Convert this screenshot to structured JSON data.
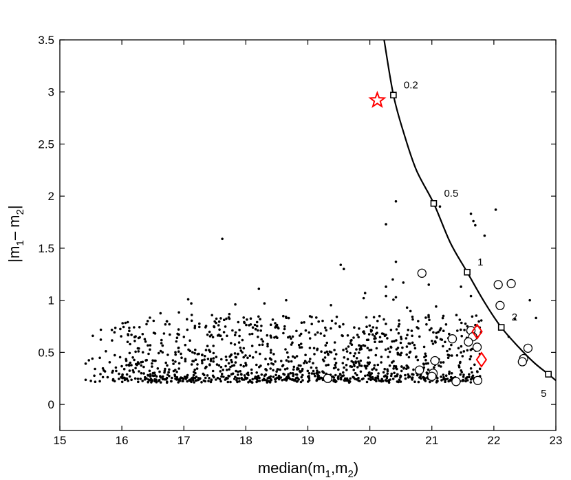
{
  "chart_data": {
    "type": "scatter",
    "title": "",
    "xlabel": {
      "base": "median(m",
      "sub1": "1",
      "mid": ",m",
      "sub2": "2",
      "end": ")"
    },
    "ylabel": {
      "p1": "|m",
      "sub1": "1",
      "p2": "– m",
      "sub2": "2",
      "p3": "|"
    },
    "xlim": [
      15,
      23
    ],
    "ylim": [
      -0.25,
      3.5
    ],
    "xticks": [
      15,
      16,
      17,
      18,
      19,
      20,
      21,
      22,
      23
    ],
    "xtick_labels": [
      "15",
      "16",
      "17",
      "18",
      "19",
      "20",
      "21",
      "22",
      "23"
    ],
    "yticks": [
      0,
      0.5,
      1,
      1.5,
      2,
      2.5,
      3,
      3.5
    ],
    "ytick_labels": [
      "0",
      "0.5",
      "1",
      "1.5",
      "2",
      "2.5",
      "3",
      "3.5"
    ],
    "grid": false,
    "colors": {
      "dots": "#000000",
      "star": "#ff0000",
      "diamond": "#ff0000",
      "curve": "#000000"
    },
    "curve": {
      "points": [
        [
          20.23,
          3.5
        ],
        [
          20.38,
          2.97
        ],
        [
          20.55,
          2.6
        ],
        [
          20.75,
          2.25
        ],
        [
          21.03,
          1.93
        ],
        [
          21.3,
          1.55
        ],
        [
          21.57,
          1.27
        ],
        [
          21.85,
          0.98
        ],
        [
          22.12,
          0.74
        ],
        [
          22.4,
          0.55
        ],
        [
          22.65,
          0.4
        ],
        [
          22.88,
          0.29
        ],
        [
          23.0,
          0.23
        ]
      ],
      "markers": [
        {
          "x": 20.38,
          "y": 2.97,
          "label": "0.2"
        },
        {
          "x": 21.03,
          "y": 1.93,
          "label": "0.5"
        },
        {
          "x": 21.57,
          "y": 1.27,
          "label": "1"
        },
        {
          "x": 22.12,
          "y": 0.74,
          "label": "2"
        },
        {
          "x": 22.88,
          "y": 0.29,
          "label": "5"
        }
      ]
    },
    "star": {
      "x": 20.12,
      "y": 2.92
    },
    "diamonds": [
      {
        "x": 21.73,
        "y": 0.7
      },
      {
        "x": 21.8,
        "y": 0.43
      }
    ],
    "circles": [
      {
        "x": 20.84,
        "y": 1.26
      },
      {
        "x": 22.07,
        "y": 1.15
      },
      {
        "x": 22.28,
        "y": 1.16
      },
      {
        "x": 22.1,
        "y": 0.95
      },
      {
        "x": 21.63,
        "y": 0.71
      },
      {
        "x": 21.66,
        "y": 0.65
      },
      {
        "x": 21.33,
        "y": 0.63
      },
      {
        "x": 21.59,
        "y": 0.6
      },
      {
        "x": 21.73,
        "y": 0.55
      },
      {
        "x": 22.55,
        "y": 0.54
      },
      {
        "x": 22.48,
        "y": 0.44
      },
      {
        "x": 22.46,
        "y": 0.41
      },
      {
        "x": 21.05,
        "y": 0.42
      },
      {
        "x": 20.8,
        "y": 0.33
      },
      {
        "x": 21.02,
        "y": 0.3
      },
      {
        "x": 21.0,
        "y": 0.27
      },
      {
        "x": 21.39,
        "y": 0.22
      },
      {
        "x": 21.74,
        "y": 0.23
      },
      {
        "x": 19.32,
        "y": 0.25
      }
    ],
    "dots_outliers": [
      [
        17.62,
        1.59
      ],
      [
        20.26,
        1.73
      ],
      [
        20.42,
        1.95
      ],
      [
        21.13,
        1.9
      ],
      [
        21.63,
        1.83
      ],
      [
        21.67,
        1.76
      ],
      [
        21.7,
        1.72
      ],
      [
        21.85,
        1.62
      ],
      [
        22.03,
        1.87
      ],
      [
        19.53,
        1.34
      ],
      [
        19.58,
        1.3
      ],
      [
        20.42,
        1.37
      ],
      [
        20.37,
        1.2
      ],
      [
        20.54,
        1.17
      ],
      [
        20.26,
        1.04
      ],
      [
        20.42,
        1.03
      ],
      [
        20.26,
        1.13
      ],
      [
        18.21,
        1.11
      ],
      [
        17.07,
        1.01
      ],
      [
        17.12,
        0.97
      ],
      [
        17.83,
        0.96
      ],
      [
        18.3,
        0.97
      ],
      [
        18.65,
        1.0
      ],
      [
        19.9,
        1.02
      ],
      [
        22.58,
        1.0
      ],
      [
        22.68,
        0.83
      ],
      [
        22.34,
        0.82
      ],
      [
        22.24,
        0.65
      ],
      [
        21.47,
        1.13
      ],
      [
        21.63,
        1.04
      ],
      [
        20.6,
        0.93
      ],
      [
        20.95,
        1.15
      ]
    ],
    "dot_cloud": {
      "count": 1250,
      "x_range": [
        15.4,
        22.1
      ],
      "y_floor": 0.21,
      "seed": 7
    }
  }
}
